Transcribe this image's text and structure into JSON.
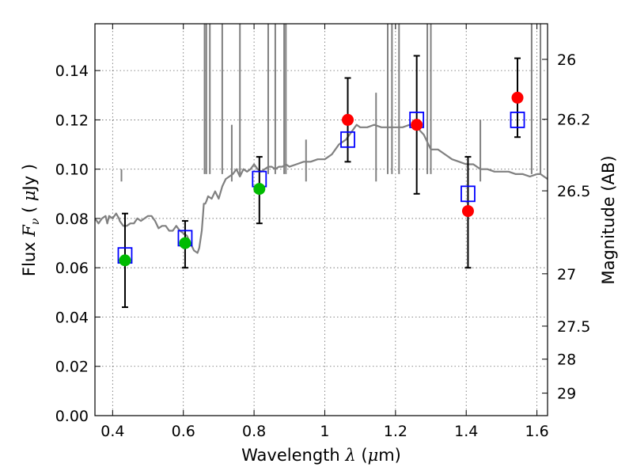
{
  "chart_data": {
    "type": "scatter",
    "xlabel": "Wavelength  λ (μm)",
    "ylabel": "Flux  F_ν  ( μJy )",
    "y2label": "Magnitude (AB)",
    "xlim": [
      0.35,
      1.63
    ],
    "ylim": [
      0.0,
      0.159
    ],
    "grid": true,
    "x_ticks": [
      {
        "v": 0.4,
        "label": "0.4"
      },
      {
        "v": 0.6,
        "label": "0.6"
      },
      {
        "v": 0.8,
        "label": "0.8"
      },
      {
        "v": 1.0,
        "label": "1"
      },
      {
        "v": 1.2,
        "label": "1.2"
      },
      {
        "v": 1.4,
        "label": "1.4"
      },
      {
        "v": 1.6,
        "label": "1.6"
      }
    ],
    "y_ticks": [
      {
        "v": 0.0,
        "label": "0.00"
      },
      {
        "v": 0.02,
        "label": "0.02"
      },
      {
        "v": 0.04,
        "label": "0.04"
      },
      {
        "v": 0.06,
        "label": "0.06"
      },
      {
        "v": 0.08,
        "label": "0.08"
      },
      {
        "v": 0.1,
        "label": "0.10"
      },
      {
        "v": 0.12,
        "label": "0.12"
      },
      {
        "v": 0.14,
        "label": "0.14"
      }
    ],
    "y2_ticks": [
      {
        "v": 26,
        "label": "26"
      },
      {
        "v": 26.2,
        "label": "26.2"
      },
      {
        "v": 26.5,
        "label": "26.5"
      },
      {
        "v": 27,
        "label": "27"
      },
      {
        "v": 27.5,
        "label": "27.5"
      },
      {
        "v": 28,
        "label": "28"
      },
      {
        "v": 29,
        "label": "29"
      }
    ],
    "series": [
      {
        "kind": "model_spectrum",
        "color": "#808080",
        "x": [
          0.35,
          0.36,
          0.37,
          0.38,
          0.385,
          0.39,
          0.4,
          0.41,
          0.418,
          0.42,
          0.43,
          0.44,
          0.45,
          0.46,
          0.47,
          0.48,
          0.49,
          0.5,
          0.51,
          0.52,
          0.53,
          0.54,
          0.55,
          0.56,
          0.57,
          0.58,
          0.59,
          0.6,
          0.61,
          0.62,
          0.63,
          0.64,
          0.645,
          0.652,
          0.656,
          0.658,
          0.662,
          0.665,
          0.67,
          0.68,
          0.69,
          0.7,
          0.71,
          0.72,
          0.73,
          0.74,
          0.75,
          0.76,
          0.77,
          0.78,
          0.79,
          0.8,
          0.81,
          0.82,
          0.83,
          0.84,
          0.85,
          0.86,
          0.87,
          0.88,
          0.89,
          0.9,
          0.92,
          0.94,
          0.96,
          0.98,
          1.0,
          1.02,
          1.04,
          1.06,
          1.08,
          1.09,
          1.1,
          1.12,
          1.14,
          1.16,
          1.18,
          1.2,
          1.22,
          1.24,
          1.26,
          1.28,
          1.3,
          1.32,
          1.34,
          1.36,
          1.38,
          1.4,
          1.42,
          1.44,
          1.46,
          1.48,
          1.5,
          1.52,
          1.54,
          1.56,
          1.58,
          1.6,
          1.61,
          1.62,
          1.63
        ],
        "y": [
          0.08,
          0.078,
          0.08,
          0.081,
          0.078,
          0.081,
          0.08,
          0.082,
          0.08,
          0.079,
          0.077,
          0.077,
          0.078,
          0.078,
          0.08,
          0.079,
          0.08,
          0.081,
          0.081,
          0.079,
          0.076,
          0.077,
          0.077,
          0.075,
          0.075,
          0.077,
          0.075,
          0.074,
          0.073,
          0.07,
          0.067,
          0.066,
          0.068,
          0.075,
          0.082,
          0.086,
          0.086,
          0.087,
          0.089,
          0.088,
          0.091,
          0.088,
          0.093,
          0.096,
          0.097,
          0.098,
          0.1,
          0.097,
          0.1,
          0.099,
          0.1,
          0.102,
          0.1,
          0.099,
          0.1,
          0.101,
          0.101,
          0.1,
          0.101,
          0.101,
          0.102,
          0.101,
          0.102,
          0.103,
          0.103,
          0.104,
          0.104,
          0.106,
          0.11,
          0.112,
          0.116,
          0.118,
          0.117,
          0.117,
          0.118,
          0.117,
          0.117,
          0.117,
          0.117,
          0.118,
          0.117,
          0.114,
          0.108,
          0.108,
          0.106,
          0.104,
          0.103,
          0.102,
          0.102,
          0.1,
          0.1,
          0.099,
          0.099,
          0.099,
          0.098,
          0.098,
          0.097,
          0.098,
          0.098,
          0.097,
          0.096
        ]
      },
      {
        "kind": "model_photometry",
        "marker": "open-square",
        "color": "#0000ff",
        "x": [
          0.435,
          0.605,
          0.815,
          1.065,
          1.26,
          1.405,
          1.545
        ],
        "y": [
          0.065,
          0.072,
          0.096,
          0.112,
          0.12,
          0.09,
          0.12
        ]
      },
      {
        "kind": "observed",
        "marker": "filled-circle",
        "color": "#00bb00",
        "x": [
          0.435,
          0.605,
          0.815
        ],
        "y": [
          0.063,
          0.07,
          0.092
        ],
        "yerr_low": [
          0.044,
          0.06,
          0.078
        ],
        "yerr_high": [
          0.082,
          0.079,
          0.105
        ]
      },
      {
        "kind": "observed",
        "marker": "filled-circle",
        "color": "#ff0000",
        "x": [
          1.065,
          1.26,
          1.405,
          1.545
        ],
        "y": [
          0.12,
          0.118,
          0.083,
          0.129
        ],
        "yerr_low": [
          0.103,
          0.09,
          0.06,
          0.113
        ],
        "yerr_high": [
          0.137,
          0.146,
          0.105,
          0.145
        ]
      }
    ]
  }
}
